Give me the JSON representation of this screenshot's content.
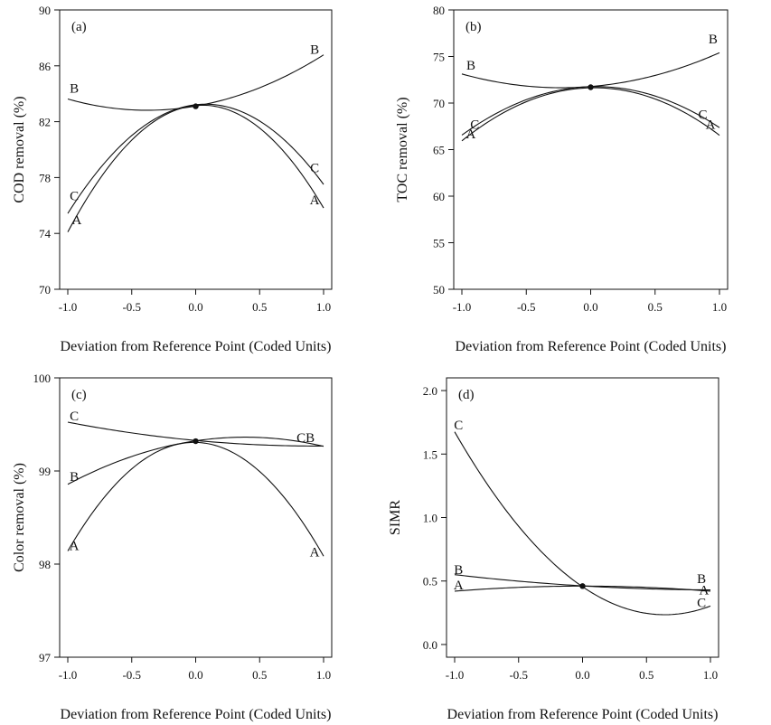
{
  "chart_data": [
    {
      "type": "line",
      "panel_label": "(a)",
      "xlabel": "Deviation from Reference Point (Coded Units)",
      "ylabel": "COD removal (%)",
      "xlim": [
        -1.0,
        1.0
      ],
      "ylim": [
        70,
        90
      ],
      "x_ticks": [
        -1.0,
        -0.5,
        0.0,
        0.5,
        1.0
      ],
      "x_tick_labels": [
        "-1.0",
        "-0.5",
        "0.0",
        "0.5",
        "1.0"
      ],
      "y_ticks": [
        70,
        74,
        78,
        82,
        86,
        90
      ],
      "y_tick_labels": [
        "70",
        "74",
        "78",
        "82",
        "86",
        "90"
      ],
      "reference_point": {
        "x": 0.0,
        "y": 83.1
      },
      "series": [
        {
          "name": "A",
          "x": [
            -1.0,
            -0.5,
            0.0,
            0.5,
            1.0
          ],
          "y": [
            74.3,
            80.3,
            83.1,
            82.0,
            75.6
          ]
        },
        {
          "name": "B",
          "x": [
            -1.0,
            -0.5,
            0.0,
            0.5,
            1.0
          ],
          "y": [
            83.6,
            82.9,
            83.1,
            84.4,
            86.8
          ]
        },
        {
          "name": "C",
          "x": [
            -1.0,
            -0.5,
            0.0,
            0.5,
            1.0
          ],
          "y": [
            75.6,
            80.7,
            83.1,
            82.5,
            77.3
          ]
        }
      ],
      "curve_labels": [
        {
          "text": "A",
          "x": -0.93,
          "y": 75.0
        },
        {
          "text": "C",
          "x": -0.95,
          "y": 76.7
        },
        {
          "text": "B",
          "x": -0.95,
          "y": 84.4
        },
        {
          "text": "B",
          "x": 0.93,
          "y": 87.2
        },
        {
          "text": "C",
          "x": 0.93,
          "y": 78.7
        },
        {
          "text": "A",
          "x": 0.93,
          "y": 76.4
        }
      ]
    },
    {
      "type": "line",
      "panel_label": "(b)",
      "xlabel": "Deviation from Reference Point (Coded Units)",
      "ylabel": "TOC removal (%)",
      "xlim": [
        -1.0,
        1.0
      ],
      "ylim": [
        50,
        80
      ],
      "x_ticks": [
        -1.0,
        -0.5,
        0.0,
        0.5,
        1.0
      ],
      "x_tick_labels": [
        "-1.0",
        "-0.5",
        "0.0",
        "0.5",
        "1.0"
      ],
      "y_ticks": [
        50,
        55,
        60,
        65,
        70,
        75,
        80
      ],
      "y_tick_labels": [
        "50",
        "55",
        "60",
        "65",
        "70",
        "75",
        "80"
      ],
      "reference_point": {
        "x": 0.0,
        "y": 71.7
      },
      "series": [
        {
          "name": "A",
          "x": [
            -1.0,
            -0.5,
            0.0,
            0.5,
            1.0
          ],
          "y": [
            66.0,
            70.0,
            71.7,
            70.5,
            66.5
          ]
        },
        {
          "name": "B",
          "x": [
            -1.0,
            -0.5,
            0.0,
            0.5,
            1.0
          ],
          "y": [
            73.0,
            72.1,
            71.7,
            72.8,
            75.5
          ]
        },
        {
          "name": "C",
          "x": [
            -1.0,
            -0.5,
            0.0,
            0.5,
            1.0
          ],
          "y": [
            66.6,
            70.3,
            71.7,
            70.9,
            67.3
          ]
        }
      ],
      "curve_labels": [
        {
          "text": "A",
          "x": -0.93,
          "y": 66.7
        },
        {
          "text": "C",
          "x": -0.9,
          "y": 67.7
        },
        {
          "text": "B",
          "x": -0.93,
          "y": 74.1
        },
        {
          "text": "B",
          "x": 0.95,
          "y": 76.9
        },
        {
          "text": "C",
          "x": 0.87,
          "y": 68.8
        },
        {
          "text": "A",
          "x": 0.93,
          "y": 67.7
        }
      ]
    },
    {
      "type": "line",
      "panel_label": "(c)",
      "xlabel": "Deviation from Reference Point (Coded Units)",
      "ylabel": "Color removal (%)",
      "xlim": [
        -1.0,
        1.0
      ],
      "ylim": [
        97,
        100
      ],
      "x_ticks": [
        -1.0,
        -0.5,
        0.0,
        0.5,
        1.0
      ],
      "x_tick_labels": [
        "-1.0",
        "-0.5",
        "0.0",
        "0.5",
        "1.0"
      ],
      "y_ticks": [
        97,
        98,
        99,
        100
      ],
      "y_tick_labels": [
        "97",
        "98",
        "99",
        "100"
      ],
      "reference_point": {
        "x": 0.0,
        "y": 99.32
      },
      "series": [
        {
          "name": "A",
          "x": [
            -1.0,
            -0.5,
            0.0,
            0.5,
            1.0
          ],
          "y": [
            98.15,
            99.0,
            99.32,
            99.0,
            98.08
          ]
        },
        {
          "name": "B",
          "x": [
            -1.0,
            -0.5,
            0.0,
            0.5,
            1.0
          ],
          "y": [
            98.86,
            99.15,
            99.32,
            99.37,
            99.26
          ]
        },
        {
          "name": "C",
          "x": [
            -1.0,
            -0.5,
            0.0,
            0.5,
            1.0
          ],
          "y": [
            99.52,
            99.42,
            99.32,
            99.28,
            99.27
          ]
        }
      ],
      "curve_labels": [
        {
          "text": "A",
          "x": -0.95,
          "y": 98.2
        },
        {
          "text": "B",
          "x": -0.95,
          "y": 98.94
        },
        {
          "text": "C",
          "x": -0.95,
          "y": 99.59
        },
        {
          "text": "CB",
          "x": 0.86,
          "y": 99.36
        },
        {
          "text": "A",
          "x": 0.93,
          "y": 98.13
        }
      ]
    },
    {
      "type": "line",
      "panel_label": "(d)",
      "xlabel": "Deviation from Reference Point (Coded Units)",
      "ylabel": "SIMR",
      "xlim": [
        -1.0,
        1.0
      ],
      "ylim": [
        -0.1,
        2.1
      ],
      "x_ticks": [
        -1.0,
        -0.5,
        0.0,
        0.5,
        1.0
      ],
      "x_tick_labels": [
        "-1.0",
        "-0.5",
        "0.0",
        "0.5",
        "1.0"
      ],
      "y_ticks": [
        0.0,
        0.5,
        1.0,
        1.5,
        2.0
      ],
      "y_tick_labels": [
        "0.0",
        "0.5",
        "1.0",
        "1.5",
        "2.0"
      ],
      "reference_point": {
        "x": 0.0,
        "y": 0.46
      },
      "series": [
        {
          "name": "A",
          "x": [
            -1.0,
            -0.5,
            0.0,
            0.5,
            1.0
          ],
          "y": [
            0.42,
            0.45,
            0.46,
            0.45,
            0.42
          ]
        },
        {
          "name": "B",
          "x": [
            -1.0,
            -0.5,
            0.0,
            0.5,
            1.0
          ],
          "y": [
            0.55,
            0.5,
            0.46,
            0.44,
            0.43
          ]
        },
        {
          "name": "C",
          "x": [
            -1.0,
            -0.5,
            0.0,
            0.5,
            1.0
          ],
          "y": [
            1.68,
            0.92,
            0.46,
            0.25,
            0.3
          ]
        }
      ],
      "curve_labels": [
        {
          "text": "C",
          "x": -0.97,
          "y": 1.73
        },
        {
          "text": "B",
          "x": -0.97,
          "y": 0.59
        },
        {
          "text": "A",
          "x": -0.97,
          "y": 0.47
        },
        {
          "text": "B",
          "x": 0.93,
          "y": 0.52
        },
        {
          "text": "A",
          "x": 0.95,
          "y": 0.43
        },
        {
          "text": "C",
          "x": 0.93,
          "y": 0.33
        }
      ]
    }
  ]
}
